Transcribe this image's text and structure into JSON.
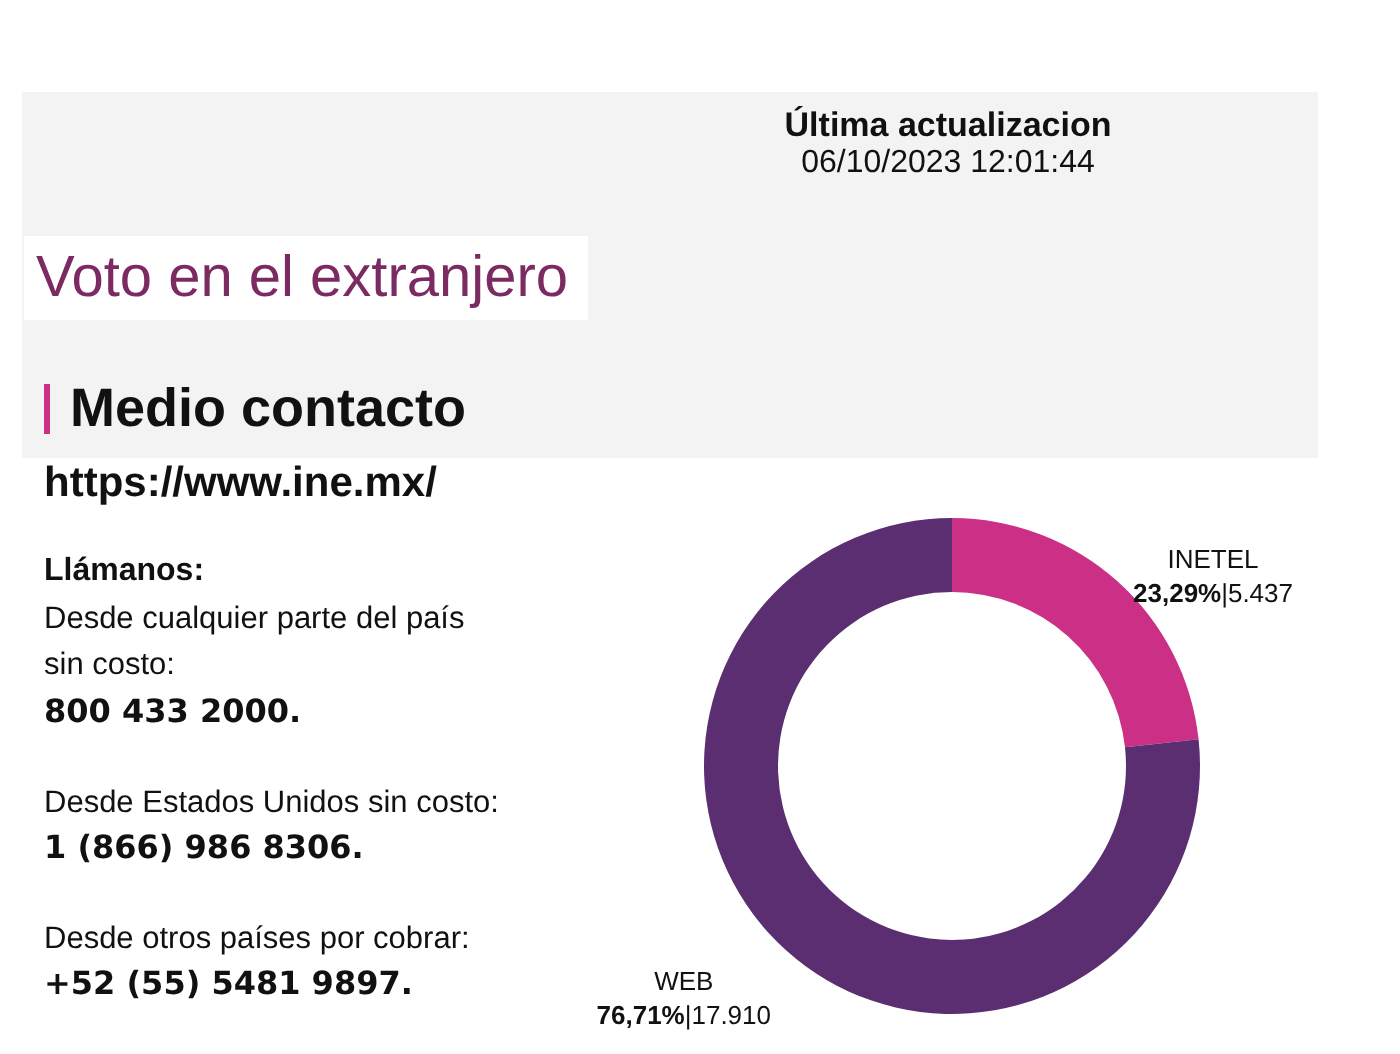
{
  "chart_data": {
    "type": "donut",
    "title": "Voto en el extranjero",
    "subtitle": "Medio contacto",
    "categories": [
      "INETEL",
      "WEB"
    ],
    "values": [
      5437,
      17910
    ],
    "colors": [
      "#cc2f86",
      "#5a2e70"
    ],
    "value_labels": [
      "23,29%|5.437",
      "76,71%|17.910"
    ],
    "annotations": [
      "Última actualizacion",
      "06/10/2023 12:01:44",
      "https://www.ine.mx/",
      "Llámanos:",
      "Desde cualquier parte del país",
      "sin costo:",
      "800 433 2000.",
      "Desde Estados Unidos sin costo:",
      "1 (866) 986 8306.",
      "Desde otros países por cobrar:",
      "+52 (55) 5481 9897."
    ]
  }
}
